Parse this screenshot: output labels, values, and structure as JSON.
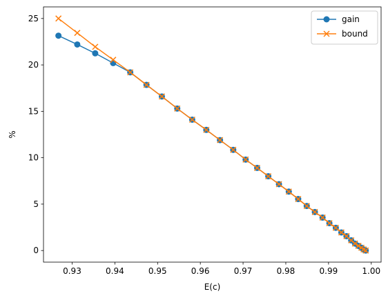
{
  "chart_data": {
    "type": "line",
    "xlabel": "E(c)",
    "ylabel": "%",
    "xlim": [
      0.9233,
      1.0023
    ],
    "ylim": [
      -1.25,
      26.25
    ],
    "x_ticks": [
      0.93,
      0.94,
      0.95,
      0.96,
      0.97,
      0.98,
      0.99,
      1.0
    ],
    "x_tick_labels": [
      "0.93",
      "0.94",
      "0.95",
      "0.96",
      "0.97",
      "0.98",
      "0.99",
      "1.00"
    ],
    "y_ticks": [
      0,
      5,
      10,
      15,
      20,
      25
    ],
    "y_tick_labels": [
      "0",
      "5",
      "10",
      "15",
      "20",
      "25"
    ],
    "grid": false,
    "legend_position": "top-right",
    "series": [
      {
        "name": "gain",
        "color": "#1f77b4",
        "marker": "circle",
        "x": [
          0.9268,
          0.9312,
          0.9354,
          0.9396,
          0.9436,
          0.9474,
          0.951,
          0.9546,
          0.9581,
          0.9614,
          0.9646,
          0.9677,
          0.9706,
          0.9733,
          0.9759,
          0.9784,
          0.9807,
          0.9829,
          0.9849,
          0.9868,
          0.9886,
          0.9902,
          0.9917,
          0.993,
          0.9942,
          0.9953,
          0.9962,
          0.997,
          0.9977,
          0.9982,
          0.9987
        ],
        "y": [
          23.15,
          22.2,
          21.25,
          20.2,
          19.2,
          17.85,
          16.6,
          15.3,
          14.1,
          13.0,
          11.9,
          10.85,
          9.8,
          8.9,
          8.0,
          7.15,
          6.35,
          5.55,
          4.8,
          4.15,
          3.55,
          2.95,
          2.45,
          1.95,
          1.55,
          1.1,
          0.75,
          0.5,
          0.3,
          0.12,
          0.0
        ]
      },
      {
        "name": "bound",
        "color": "#ff7f0e",
        "marker": "x",
        "x": [
          0.9268,
          0.9312,
          0.9354,
          0.9396,
          0.9436,
          0.9474,
          0.951,
          0.9546,
          0.9581,
          0.9614,
          0.9646,
          0.9677,
          0.9706,
          0.9733,
          0.9759,
          0.9784,
          0.9807,
          0.9829,
          0.9849,
          0.9868,
          0.9886,
          0.9902,
          0.9917,
          0.993,
          0.9942,
          0.9953,
          0.9962,
          0.997,
          0.9977,
          0.9982,
          0.9987
        ],
        "y": [
          25.0,
          23.45,
          21.95,
          20.55,
          19.2,
          17.85,
          16.6,
          15.3,
          14.1,
          13.0,
          11.9,
          10.85,
          9.8,
          8.9,
          8.0,
          7.15,
          6.35,
          5.55,
          4.8,
          4.15,
          3.55,
          2.95,
          2.45,
          1.95,
          1.55,
          1.1,
          0.75,
          0.5,
          0.3,
          0.12,
          0.0
        ]
      }
    ]
  }
}
